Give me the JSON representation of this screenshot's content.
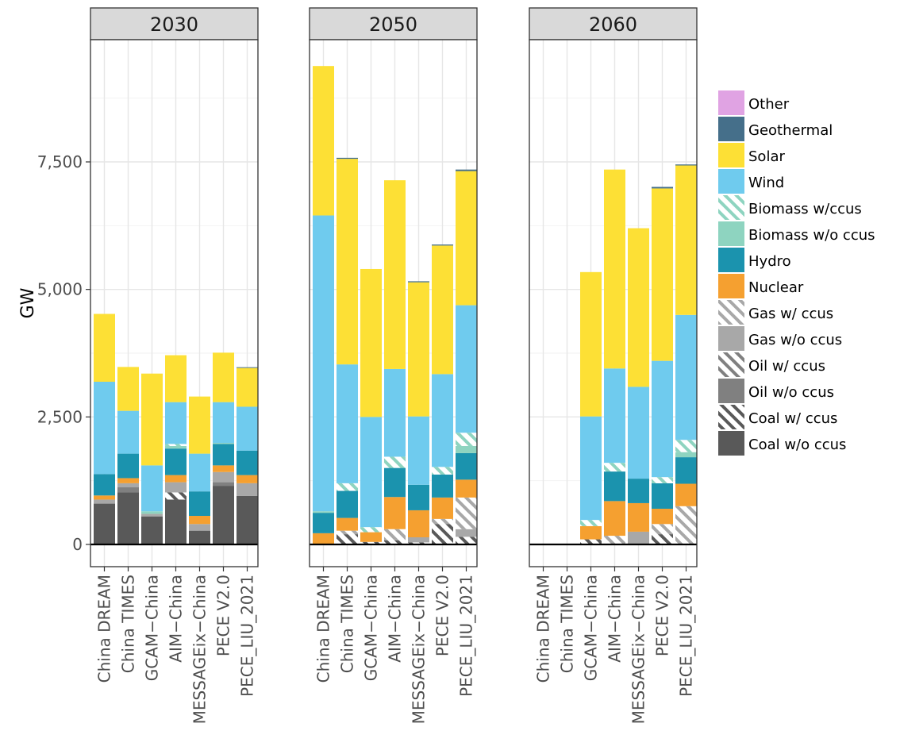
{
  "chart_data": {
    "type": "bar",
    "stacked": true,
    "ylabel": "GW",
    "ylim": [
      0,
      9900
    ],
    "yticks": [
      0,
      2500,
      5000,
      7500
    ],
    "ytick_labels": [
      "0",
      "2,500",
      "5,000",
      "7,500"
    ],
    "models": [
      "China DREAM",
      "China TIMES",
      "GCAM−China",
      "AIM−China",
      "MESSAGEix−China",
      "PECE V2.0",
      "PECE_LIU_2021"
    ],
    "panels": [
      "2030",
      "2050",
      "2060"
    ],
    "legend_position": "right",
    "grid": true,
    "series": [
      {
        "name": "Coal w/o ccus",
        "color": "#595959",
        "hatched": false
      },
      {
        "name": "Coal w/ ccus",
        "color": "#595959",
        "hatched": true
      },
      {
        "name": "Oil w/o ccus",
        "color": "#808080",
        "hatched": false
      },
      {
        "name": "Oil w/ ccus",
        "color": "#808080",
        "hatched": true
      },
      {
        "name": "Gas w/o ccus",
        "color": "#a8a8a8",
        "hatched": false
      },
      {
        "name": "Gas w/ ccus",
        "color": "#a8a8a8",
        "hatched": true
      },
      {
        "name": "Nuclear",
        "color": "#f5a030",
        "hatched": false
      },
      {
        "name": "Hydro",
        "color": "#1b93ae",
        "hatched": false
      },
      {
        "name": "Biomass w/o ccus",
        "color": "#8ed4c0",
        "hatched": false
      },
      {
        "name": "Biomass w/ ccus",
        "color": "#8ed4c0",
        "hatched": true
      },
      {
        "name": "Wind",
        "color": "#6fcbee",
        "hatched": false
      },
      {
        "name": "Solar",
        "color": "#fde035",
        "hatched": false
      },
      {
        "name": "Geothermal",
        "color": "#456f8a",
        "hatched": false
      },
      {
        "name": "Other",
        "color": "#e0a3e3",
        "hatched": false
      }
    ],
    "series_order_note_excluded": true,
    "values_by_panel": {
      "2030": [
        [
          800,
          0,
          0,
          0,
          80,
          0,
          80,
          420,
          0,
          0,
          1810,
          1330,
          0,
          0
        ],
        [
          1020,
          0,
          100,
          0,
          80,
          0,
          100,
          480,
          0,
          0,
          840,
          860,
          0,
          0
        ],
        [
          550,
          0,
          0,
          0,
          50,
          0,
          0,
          0,
          50,
          0,
          900,
          1800,
          0,
          0
        ],
        [
          880,
          140,
          0,
          0,
          200,
          0,
          140,
          520,
          50,
          40,
          820,
          920,
          0,
          0
        ],
        [
          270,
          0,
          0,
          0,
          130,
          0,
          160,
          480,
          0,
          0,
          740,
          1120,
          0,
          0
        ],
        [
          1150,
          0,
          70,
          0,
          200,
          0,
          130,
          420,
          20,
          0,
          800,
          970,
          0,
          0
        ],
        [
          950,
          0,
          0,
          0,
          250,
          0,
          160,
          480,
          0,
          0,
          860,
          760,
          15,
          0
        ]
      ],
      "2050": [
        [
          0,
          0,
          0,
          0,
          0,
          0,
          220,
          400,
          30,
          0,
          5800,
          2930,
          0,
          0
        ],
        [
          0,
          200,
          0,
          0,
          0,
          70,
          250,
          530,
          0,
          150,
          2330,
          4030,
          20,
          0
        ],
        [
          0,
          50,
          0,
          0,
          0,
          0,
          190,
          0,
          0,
          100,
          2160,
          2900,
          0,
          0
        ],
        [
          0,
          80,
          0,
          0,
          0,
          220,
          630,
          570,
          0,
          220,
          1720,
          3700,
          0,
          0
        ],
        [
          0,
          40,
          0,
          0,
          100,
          0,
          530,
          500,
          0,
          0,
          1340,
          2630,
          20,
          0
        ],
        [
          0,
          400,
          0,
          0,
          0,
          100,
          420,
          450,
          0,
          150,
          1820,
          2520,
          20,
          0
        ],
        [
          0,
          150,
          0,
          0,
          150,
          620,
          350,
          520,
          140,
          260,
          2500,
          2630,
          30,
          0
        ]
      ],
      "2060": [
        [
          0,
          0,
          0,
          0,
          0,
          0,
          0,
          0,
          0,
          0,
          0,
          0,
          0,
          0
        ],
        [
          0,
          0,
          0,
          0,
          0,
          0,
          0,
          0,
          0,
          0,
          0,
          0,
          0,
          0
        ],
        [
          0,
          100,
          0,
          0,
          0,
          0,
          260,
          0,
          0,
          120,
          2030,
          2830,
          0,
          0
        ],
        [
          0,
          0,
          0,
          0,
          0,
          170,
          680,
          580,
          0,
          170,
          1850,
          3900,
          0,
          0
        ],
        [
          0,
          0,
          0,
          0,
          250,
          0,
          560,
          480,
          0,
          0,
          1800,
          3110,
          0,
          0
        ],
        [
          0,
          200,
          0,
          0,
          0,
          200,
          300,
          500,
          0,
          120,
          2280,
          3380,
          30,
          0
        ],
        [
          0,
          0,
          0,
          0,
          0,
          750,
          440,
          520,
          100,
          240,
          2450,
          2930,
          20,
          0
        ]
      ]
    }
  },
  "legend_order": [
    "Other",
    "Geothermal",
    "Solar",
    "Wind",
    "Biomass w/ccus",
    "Biomass w/o ccus",
    "Hydro",
    "Nuclear",
    "Gas w/ ccus",
    "Gas w/o ccus",
    "Oil w/ ccus",
    "Oil w/o ccus",
    "Coal w/ ccus",
    "Coal w/o ccus"
  ],
  "legend_colors": [
    "#e0a3e3",
    "#456f8a",
    "#fde035",
    "#6fcbee",
    "#8ed4c0",
    "#8ed4c0",
    "#1b93ae",
    "#f5a030",
    "#a8a8a8",
    "#a8a8a8",
    "#808080",
    "#808080",
    "#595959",
    "#595959"
  ],
  "legend_hatched": [
    false,
    false,
    false,
    false,
    true,
    false,
    false,
    false,
    true,
    false,
    true,
    false,
    true,
    false
  ]
}
